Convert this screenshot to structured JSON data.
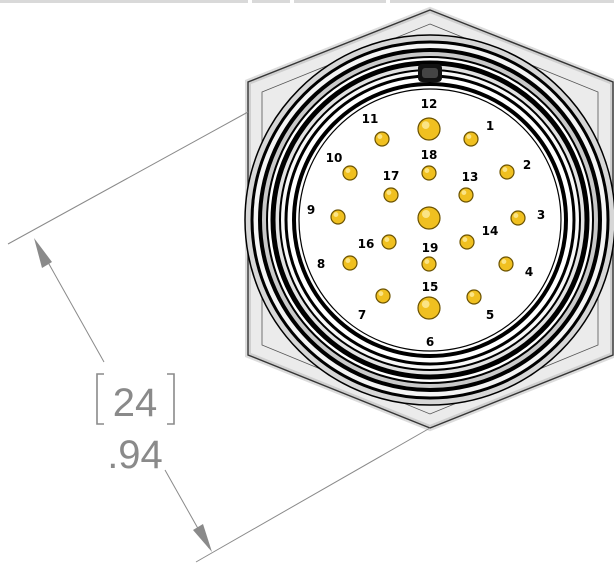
{
  "colors": {
    "background": "#ffffff",
    "line": "#000000",
    "dimension": "#8a8a8a",
    "pin_fill": "#f0c020",
    "pin_stroke": "#6b5200",
    "body_gray": "#c8c8c8"
  },
  "dimension": {
    "primary_value": "24",
    "secondary_value": ".94"
  },
  "pins": [
    {
      "label": "1"
    },
    {
      "label": "2"
    },
    {
      "label": "3"
    },
    {
      "label": "4"
    },
    {
      "label": "5"
    },
    {
      "label": "6"
    },
    {
      "label": "7"
    },
    {
      "label": "8"
    },
    {
      "label": "9"
    },
    {
      "label": "10"
    },
    {
      "label": "11"
    },
    {
      "label": "12"
    },
    {
      "label": "13"
    },
    {
      "label": "14"
    },
    {
      "label": "15"
    },
    {
      "label": "16"
    },
    {
      "label": "17"
    },
    {
      "label": "18"
    },
    {
      "label": "19"
    }
  ]
}
